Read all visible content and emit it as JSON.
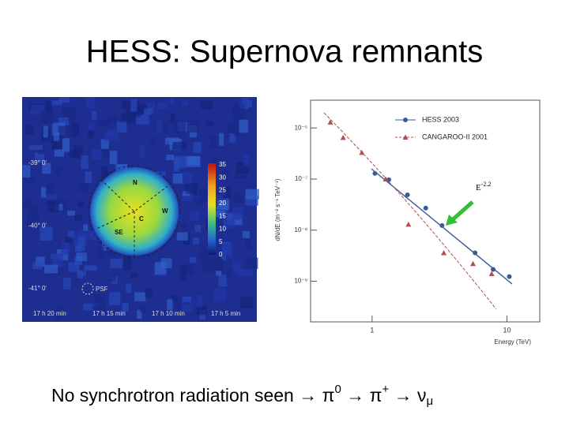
{
  "header": {
    "title": "HESS: Supernova remnants"
  },
  "sky_map": {
    "colorbar_labels": [
      "35",
      "30",
      "25",
      "20",
      "15",
      "10",
      "5",
      "0"
    ],
    "dec_labels": [
      "-39° 0'",
      "-40° 0'",
      "-41° 0'"
    ],
    "ra_labels": [
      "17 h 20 min",
      "17 h 15 min",
      "17 h 10 min",
      "17 h 5 min"
    ],
    "psf_label": "PSF",
    "region_labels": [
      "N",
      "W",
      "SE",
      "C"
    ]
  },
  "chart_data": {
    "type": "scatter",
    "x_label": "Energy (TeV)",
    "y_label": "dN/dE (m⁻² s⁻¹ TeV⁻¹)",
    "annotation": "E",
    "annotation_sup": "-2.2",
    "log_x": true,
    "log_y": true,
    "xlim": [
      0.35,
      17.5
    ],
    "ylim": [
      1.6e-10,
      3.5e-06
    ],
    "xticks": [
      1,
      10
    ],
    "yticks": [
      {
        "value": 1e-06,
        "label": "10⁻⁶"
      },
      {
        "value": 1e-07,
        "label": "10⁻⁷"
      },
      {
        "value": 1e-08,
        "label": "10⁻⁸"
      },
      {
        "value": 1e-09,
        "label": "10⁻⁹"
      }
    ],
    "series": [
      {
        "name": "HESS 2003",
        "color": "#3a5a9a",
        "marker": "circle",
        "x": [
          1.05,
          1.33,
          1.83,
          2.5,
          3.3,
          5.8,
          7.9,
          10.4
        ],
        "values": [
          1.29e-07,
          9.7e-08,
          4.9e-08,
          2.7e-08,
          1.23e-08,
          3.6e-09,
          1.7e-09,
          1.23e-09
        ]
      },
      {
        "name": "CANGAROO-II 2001",
        "color": "#b05050",
        "marker": "triangle",
        "x": [
          0.49,
          0.61,
          0.84,
          1.26,
          1.86,
          3.4,
          5.6,
          7.7
        ],
        "values": [
          1.3e-06,
          6.5e-07,
          3.3e-07,
          1e-07,
          1.3e-08,
          3.6e-09,
          2.2e-09,
          1.4e-09
        ]
      }
    ]
  },
  "caption": {
    "lead": "No synchrotron radiation seen",
    "arrow": "→",
    "p1": "π",
    "p1_sup": "0",
    "p2": "π",
    "p2_sup": "+",
    "p3": "ν",
    "p3_sub": "μ"
  }
}
